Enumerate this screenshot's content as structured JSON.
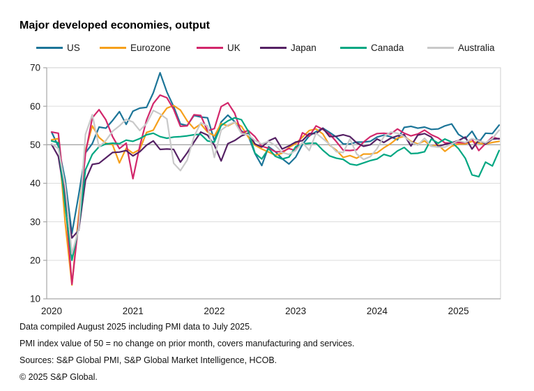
{
  "title": "Major developed economies, output",
  "legend": {
    "items": [
      {
        "label": "US",
        "color": "#1c7598"
      },
      {
        "label": "Eurozone",
        "color": "#f6a01b"
      },
      {
        "label": "UK",
        "color": "#d2276b"
      },
      {
        "label": "Japan",
        "color": "#552164"
      },
      {
        "label": "Canada",
        "color": "#00a782"
      },
      {
        "label": "Australia",
        "color": "#c9c9c9"
      }
    ]
  },
  "chart_data": {
    "type": "line",
    "title": "Major developed economies, output",
    "xlabel": "",
    "ylabel": "",
    "x_unit": "month",
    "x_range": [
      "Jan 2020",
      "Jul 2025"
    ],
    "x_tick_labels": [
      "2020",
      "2021",
      "2022",
      "2023",
      "2024",
      "2025"
    ],
    "ylim": [
      10,
      70
    ],
    "yticks": [
      10,
      20,
      30,
      40,
      50,
      60,
      70
    ],
    "reference_value": 50,
    "grid": "horizontal",
    "legend_position": "top",
    "colors": {
      "gridline": "#dcdcdc",
      "reference_line": "#a6a6a6",
      "frame": "#cfcfcf",
      "axis": "#a6a6a6",
      "tick_text": "#1a1a1a"
    },
    "series": [
      {
        "name": "US",
        "color": "#1c7598",
        "values": [
          53.3,
          49.6,
          40.9,
          27.0,
          37.0,
          47.9,
          50.3,
          54.6,
          54.3,
          56.3,
          58.6,
          55.3,
          58.7,
          59.5,
          59.7,
          63.5,
          68.7,
          63.7,
          59.9,
          55.4,
          55.0,
          57.6,
          57.2,
          57.0,
          51.1,
          55.9,
          57.7,
          56.0,
          53.6,
          52.3,
          47.7,
          44.6,
          49.5,
          48.2,
          46.4,
          45.0,
          46.8,
          50.1,
          52.3,
          53.4,
          54.3,
          53.2,
          52.0,
          50.2,
          50.2,
          50.7,
          50.7,
          50.9,
          52.0,
          52.5,
          52.1,
          51.3,
          54.5,
          54.8,
          54.3,
          54.6,
          54.0,
          54.1,
          54.9,
          55.4,
          52.7,
          51.6,
          53.5,
          50.6,
          53.0,
          52.9,
          55.1
        ]
      },
      {
        "name": "Eurozone",
        "color": "#f6a01b",
        "values": [
          51.3,
          51.6,
          29.7,
          13.6,
          31.9,
          48.5,
          54.9,
          51.9,
          50.4,
          50.0,
          45.3,
          49.1,
          47.8,
          48.8,
          53.2,
          53.8,
          57.1,
          59.5,
          60.2,
          59.0,
          56.2,
          54.2,
          55.4,
          53.3,
          52.3,
          55.5,
          54.9,
          55.8,
          54.8,
          52.0,
          49.9,
          48.9,
          48.1,
          47.3,
          47.8,
          49.3,
          50.3,
          52.0,
          53.7,
          54.1,
          52.8,
          49.9,
          48.6,
          46.7,
          47.2,
          46.5,
          47.6,
          47.6,
          47.9,
          49.2,
          50.3,
          51.7,
          52.2,
          50.9,
          50.2,
          51.0,
          49.6,
          50.0,
          48.3,
          49.6,
          50.2,
          50.2,
          50.9,
          50.4,
          50.2,
          50.6,
          50.9
        ]
      },
      {
        "name": "UK",
        "color": "#d2276b",
        "values": [
          53.3,
          53.0,
          36.0,
          13.8,
          30.0,
          47.7,
          57.0,
          59.1,
          56.5,
          52.1,
          49.0,
          50.4,
          41.2,
          49.6,
          56.4,
          60.7,
          62.9,
          62.2,
          59.2,
          54.8,
          54.9,
          57.8,
          57.6,
          53.6,
          54.2,
          59.9,
          60.9,
          58.2,
          53.1,
          53.7,
          52.1,
          49.6,
          49.1,
          48.2,
          48.2,
          49.0,
          48.5,
          53.1,
          52.2,
          54.9,
          54.0,
          52.8,
          50.8,
          48.6,
          48.5,
          48.7,
          50.7,
          52.1,
          52.9,
          53.0,
          52.8,
          54.1,
          53.0,
          52.3,
          52.8,
          53.8,
          52.6,
          51.8,
          50.5,
          50.4,
          50.6,
          50.5,
          51.5,
          48.5,
          50.3,
          52.0,
          51.5
        ]
      },
      {
        "name": "Japan",
        "color": "#552164",
        "values": [
          50.1,
          47.0,
          36.2,
          25.8,
          27.8,
          40.8,
          44.9,
          45.2,
          46.6,
          48.0,
          48.1,
          48.5,
          47.1,
          48.2,
          49.9,
          51.0,
          48.8,
          48.9,
          48.8,
          45.5,
          47.9,
          50.7,
          53.3,
          52.5,
          49.9,
          45.8,
          50.3,
          51.1,
          52.3,
          53.0,
          50.2,
          49.4,
          51.0,
          51.8,
          48.9,
          49.7,
          50.7,
          51.1,
          52.9,
          52.9,
          54.3,
          52.1,
          52.2,
          52.6,
          52.1,
          50.5,
          49.6,
          50.0,
          51.5,
          50.6,
          51.7,
          52.3,
          52.6,
          49.7,
          52.5,
          52.9,
          52.0,
          49.6,
          50.1,
          50.5,
          51.1,
          52.0,
          48.9,
          51.2,
          50.2,
          51.5,
          51.6
        ]
      },
      {
        "name": "Canada",
        "color": "#00a782",
        "values": [
          51.0,
          50.5,
          34.0,
          20.0,
          28.5,
          43.5,
          47.5,
          49.5,
          50.2,
          50.4,
          50.3,
          51.2,
          50.9,
          51.6,
          52.6,
          53.0,
          52.1,
          51.7,
          52.0,
          52.1,
          52.3,
          52.6,
          52.7,
          51.0,
          50.7,
          55.0,
          56.2,
          57.0,
          56.5,
          53.5,
          47.8,
          46.3,
          49.0,
          47.0,
          46.3,
          46.8,
          49.5,
          50.2,
          50.4,
          50.4,
          48.6,
          47.1,
          46.5,
          46.2,
          45.0,
          44.7,
          45.3,
          45.9,
          46.3,
          47.5,
          47.0,
          48.4,
          49.3,
          47.7,
          47.8,
          48.2,
          51.5,
          50.4,
          51.5,
          50.7,
          49.0,
          46.5,
          42.2,
          41.7,
          45.5,
          44.5,
          48.5
        ]
      },
      {
        "name": "Australia",
        "color": "#c9c9c9",
        "values": [
          50.2,
          49.0,
          39.4,
          21.7,
          28.1,
          52.7,
          57.8,
          49.4,
          51.1,
          53.5,
          54.9,
          56.6,
          55.9,
          53.7,
          55.5,
          58.9,
          58.0,
          56.7,
          45.2,
          43.3,
          46.0,
          52.1,
          55.7,
          54.9,
          46.7,
          53.8,
          55.1,
          55.9,
          52.9,
          52.6,
          51.1,
          50.2,
          50.9,
          49.8,
          48.0,
          47.5,
          48.5,
          50.6,
          48.5,
          53.0,
          51.6,
          50.1,
          48.2,
          48.0,
          51.5,
          47.6,
          46.2,
          46.9,
          49.0,
          52.1,
          53.3,
          53.0,
          52.1,
          50.7,
          49.9,
          51.7,
          49.6,
          49.4,
          49.4,
          50.2,
          51.1,
          50.6,
          51.6,
          51.0,
          50.5,
          51.6,
          53.8
        ]
      }
    ]
  },
  "footnotes": {
    "lines": [
      "Data compiled August 2025 including PMI data to July 2025.",
      "PMI index value of 50 = no change on prior month, covers manufacturing and services.",
      "Sources: S&P Global PMI, S&P Global Market Intelligence, HCOB.",
      "© 2025 S&P Global."
    ]
  }
}
